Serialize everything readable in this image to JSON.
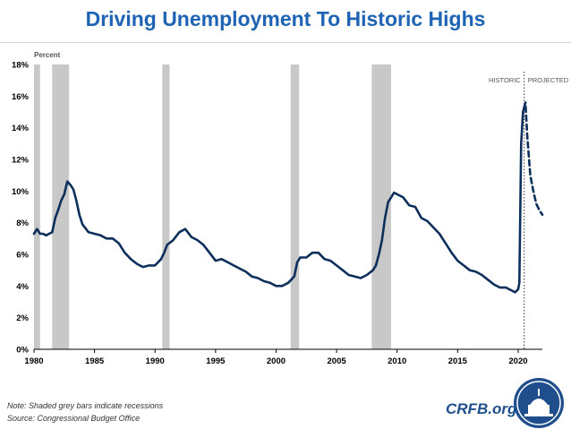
{
  "title": "Driving Unemployment To Historic Highs",
  "note": "Note: Shaded grey bars indicate recessions",
  "source": "Source: Congressional Budget Office",
  "brand": "CRFB.org",
  "colors": {
    "title": "#1f64b4",
    "line": "#0d2f5c",
    "recession": "#c8c8c8",
    "axis": "#000000"
  },
  "chart_data": {
    "type": "line",
    "ylabel": "Percent",
    "xlim": [
      1980,
      2022
    ],
    "ylim": [
      0,
      18
    ],
    "y_ticks": [
      "0%",
      "2%",
      "4%",
      "6%",
      "8%",
      "10%",
      "12%",
      "14%",
      "16%",
      "18%"
    ],
    "x_ticks": [
      "1980",
      "1985",
      "1990",
      "1995",
      "2000",
      "2005",
      "2010",
      "2015",
      "2020"
    ],
    "annotations": {
      "historic": "HISTORIC",
      "projected": "PROJECTED"
    },
    "recessions": [
      [
        1980.0,
        1980.5
      ],
      [
        1981.5,
        1982.9
      ],
      [
        1990.6,
        1991.2
      ],
      [
        2001.2,
        2001.9
      ],
      [
        2007.9,
        2009.5
      ]
    ],
    "series": [
      {
        "style": "solid",
        "x": [
          1980.0,
          1980.25,
          1980.5,
          1980.75,
          1981.0,
          1981.25,
          1981.5,
          1981.75,
          1982.0,
          1982.25,
          1982.5,
          1982.75,
          1983.0,
          1983.25,
          1983.5,
          1983.75,
          1984.0,
          1984.5,
          1985.0,
          1985.5,
          1986.0,
          1986.5,
          1987.0,
          1987.5,
          1988.0,
          1988.5,
          1989.0,
          1989.5,
          1990.0,
          1990.5,
          1990.75,
          1991.0,
          1991.5,
          1992.0,
          1992.5,
          1993.0,
          1993.5,
          1994.0,
          1994.5,
          1995.0,
          1995.5,
          1996.0,
          1996.5,
          1997.0,
          1997.5,
          1998.0,
          1998.5,
          1999.0,
          1999.5,
          2000.0,
          2000.5,
          2001.0,
          2001.25,
          2001.5,
          2001.75,
          2002.0,
          2002.5,
          2003.0,
          2003.5,
          2004.0,
          2004.5,
          2005.0,
          2005.5,
          2006.0,
          2006.5,
          2007.0,
          2007.5,
          2008.0,
          2008.25,
          2008.5,
          2008.75,
          2009.0,
          2009.25,
          2009.5,
          2009.75,
          2010.0,
          2010.5,
          2011.0,
          2011.5,
          2012.0,
          2012.5,
          2013.0,
          2013.5,
          2014.0,
          2014.5,
          2015.0,
          2015.5,
          2016.0,
          2016.5,
          2017.0,
          2017.5,
          2018.0,
          2018.5,
          2019.0,
          2019.5,
          2019.75,
          2020.0,
          2020.1,
          2020.25,
          2020.4,
          2020.5
        ],
        "values": [
          7.3,
          7.6,
          7.3,
          7.3,
          7.2,
          7.3,
          7.4,
          8.3,
          8.8,
          9.4,
          9.8,
          10.6,
          10.4,
          10.1,
          9.4,
          8.5,
          7.9,
          7.4,
          7.3,
          7.2,
          7.0,
          7.0,
          6.7,
          6.1,
          5.7,
          5.4,
          5.2,
          5.3,
          5.3,
          5.7,
          6.1,
          6.6,
          6.9,
          7.4,
          7.6,
          7.1,
          6.9,
          6.6,
          6.1,
          5.6,
          5.7,
          5.5,
          5.3,
          5.1,
          4.9,
          4.6,
          4.5,
          4.3,
          4.2,
          4.0,
          4.0,
          4.2,
          4.4,
          4.6,
          5.5,
          5.8,
          5.8,
          6.1,
          6.1,
          5.7,
          5.6,
          5.3,
          5.0,
          4.7,
          4.6,
          4.5,
          4.7,
          5.0,
          5.3,
          6.0,
          6.9,
          8.3,
          9.3,
          9.6,
          9.9,
          9.8,
          9.6,
          9.1,
          9.0,
          8.3,
          8.1,
          7.7,
          7.3,
          6.7,
          6.1,
          5.6,
          5.3,
          5.0,
          4.9,
          4.7,
          4.4,
          4.1,
          3.9,
          3.9,
          3.7,
          3.6,
          3.8,
          4.2,
          13.0,
          15.0,
          15.3
        ]
      },
      {
        "style": "dashed",
        "x": [
          2020.5,
          2020.6,
          2020.75,
          2021.0,
          2021.25,
          2021.5,
          2021.75,
          2022.0
        ],
        "values": [
          15.3,
          15.6,
          13.5,
          11.0,
          10.0,
          9.2,
          8.8,
          8.5
        ]
      }
    ]
  }
}
